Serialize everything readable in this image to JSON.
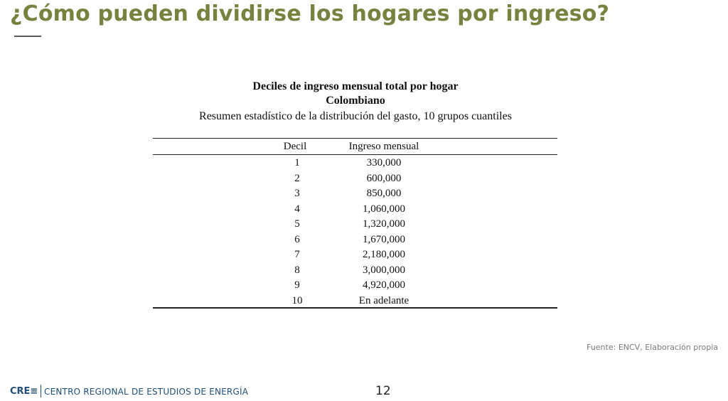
{
  "slide": {
    "title": "¿Cómo pueden dividirse los hogares por ingreso?",
    "source": "Fuente: ENCV, Elaboración propia",
    "page_number": "12"
  },
  "table": {
    "heading1": "Deciles de ingreso mensual total por hogar",
    "heading2": "Colombiano",
    "subheading": "Resumen estadístico de la distribución del gasto, 10 grupos cuantiles",
    "columns": [
      "Decil",
      "Ingreso mensual"
    ],
    "rows": [
      {
        "decil": "1",
        "ingreso": "330,000"
      },
      {
        "decil": "2",
        "ingreso": "600,000"
      },
      {
        "decil": "3",
        "ingreso": "850,000"
      },
      {
        "decil": "4",
        "ingreso": "1,060,000"
      },
      {
        "decil": "5",
        "ingreso": "1,320,000"
      },
      {
        "decil": "6",
        "ingreso": "1,670,000"
      },
      {
        "decil": "7",
        "ingreso": "2,180,000"
      },
      {
        "decil": "8",
        "ingreso": "3,000,000"
      },
      {
        "decil": "9",
        "ingreso": "4,920,000"
      },
      {
        "decil": "10",
        "ingreso": "En adelante"
      }
    ]
  },
  "footer": {
    "logo": "CRE≡",
    "org_name": "CENTRO REGIONAL DE ESTUDIOS DE ENERGÍA",
    "brand_color": "#1f4e79"
  },
  "colors": {
    "title": "#76833e"
  }
}
